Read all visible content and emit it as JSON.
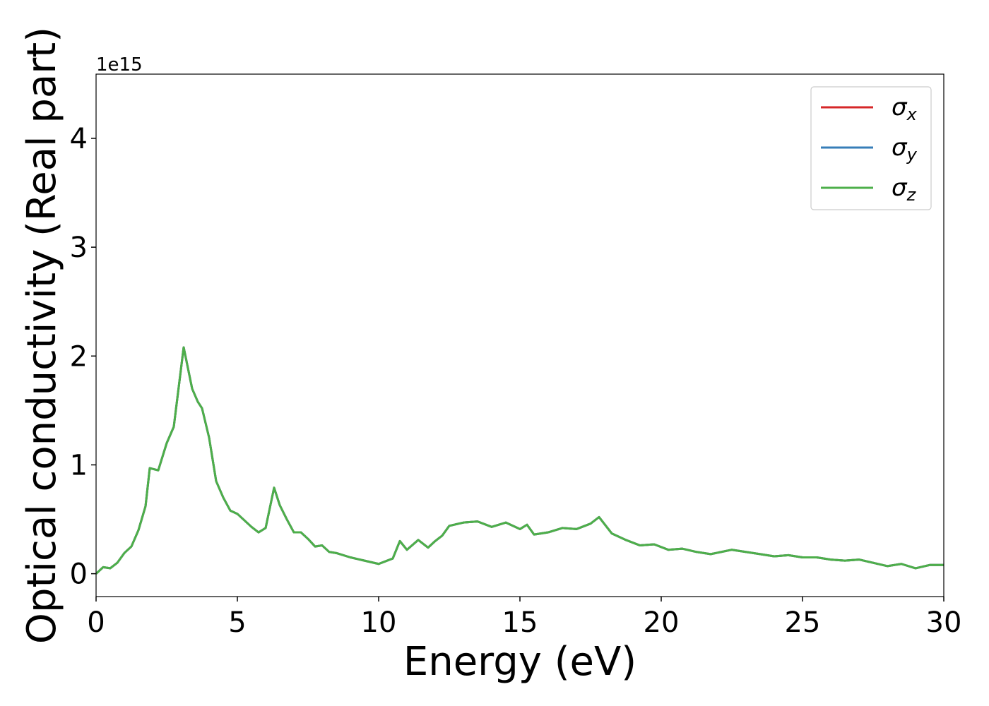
{
  "chart_data": {
    "type": "line",
    "xlabel": "Energy (eV)",
    "ylabel": "Optical conductivity (Real part)",
    "y_offset_label": "1e15",
    "x": [
      0,
      0.25,
      0.5,
      0.75,
      1.0,
      1.25,
      1.5,
      1.75,
      1.9,
      2.2,
      2.5,
      2.75,
      3.1,
      3.4,
      3.6,
      3.75,
      4.0,
      4.25,
      4.5,
      4.75,
      5.0,
      5.5,
      5.75,
      6.0,
      6.3,
      6.5,
      6.75,
      7.0,
      7.25,
      7.5,
      7.75,
      8.0,
      8.25,
      8.5,
      9.0,
      9.5,
      10.0,
      10.5,
      10.75,
      11.0,
      11.4,
      11.75,
      12.0,
      12.25,
      12.5,
      13.0,
      13.5,
      14.0,
      14.5,
      15.0,
      15.25,
      15.5,
      16.0,
      16.5,
      17.0,
      17.5,
      17.8,
      18.25,
      18.75,
      19.25,
      19.75,
      20.25,
      20.75,
      21.25,
      21.75,
      22.5,
      23.5,
      24.0,
      24.5,
      25.0,
      25.5,
      26.0,
      26.5,
      27.0,
      27.5,
      28.0,
      28.5,
      29.0,
      29.5,
      30.0
    ],
    "series": [
      {
        "name": "σx",
        "color": "#d62728",
        "values": [
          0,
          0.06,
          0.05,
          0.1,
          0.19,
          0.25,
          0.4,
          0.62,
          0.97,
          0.95,
          1.2,
          1.35,
          2.08,
          1.7,
          1.58,
          1.52,
          1.25,
          0.85,
          0.7,
          0.58,
          0.55,
          0.43,
          0.38,
          0.42,
          0.79,
          0.63,
          0.5,
          0.38,
          0.38,
          0.32,
          0.25,
          0.26,
          0.2,
          0.19,
          0.15,
          0.12,
          0.09,
          0.14,
          0.3,
          0.22,
          0.31,
          0.24,
          0.3,
          0.35,
          0.44,
          0.47,
          0.48,
          0.43,
          0.47,
          0.41,
          0.45,
          0.36,
          0.38,
          0.42,
          0.41,
          0.46,
          0.52,
          0.37,
          0.31,
          0.26,
          0.27,
          0.22,
          0.23,
          0.2,
          0.18,
          0.22,
          0.18,
          0.16,
          0.17,
          0.15,
          0.15,
          0.13,
          0.12,
          0.13,
          0.1,
          0.07,
          0.09,
          0.05,
          0.08,
          0.08
        ]
      },
      {
        "name": "σy",
        "color": "#377eb8",
        "values": [
          0,
          0.06,
          0.05,
          0.1,
          0.19,
          0.25,
          0.4,
          0.62,
          0.97,
          0.95,
          1.2,
          1.35,
          2.08,
          1.7,
          1.58,
          1.52,
          1.25,
          0.85,
          0.7,
          0.58,
          0.55,
          0.43,
          0.38,
          0.42,
          0.79,
          0.63,
          0.5,
          0.38,
          0.38,
          0.32,
          0.25,
          0.26,
          0.2,
          0.19,
          0.15,
          0.12,
          0.09,
          0.14,
          0.3,
          0.22,
          0.31,
          0.24,
          0.3,
          0.35,
          0.44,
          0.47,
          0.48,
          0.43,
          0.47,
          0.41,
          0.45,
          0.36,
          0.38,
          0.42,
          0.41,
          0.46,
          0.52,
          0.37,
          0.31,
          0.26,
          0.27,
          0.22,
          0.23,
          0.2,
          0.18,
          0.22,
          0.18,
          0.16,
          0.17,
          0.15,
          0.15,
          0.13,
          0.12,
          0.13,
          0.1,
          0.07,
          0.09,
          0.05,
          0.08,
          0.08
        ]
      },
      {
        "name": "σz",
        "color": "#4daf4a",
        "values": [
          0,
          0.06,
          0.05,
          0.1,
          0.19,
          0.25,
          0.4,
          0.62,
          0.97,
          0.95,
          1.2,
          1.35,
          2.08,
          1.7,
          1.58,
          1.52,
          1.25,
          0.85,
          0.7,
          0.58,
          0.55,
          0.43,
          0.38,
          0.42,
          0.79,
          0.63,
          0.5,
          0.38,
          0.38,
          0.32,
          0.25,
          0.26,
          0.2,
          0.19,
          0.15,
          0.12,
          0.09,
          0.14,
          0.3,
          0.22,
          0.31,
          0.24,
          0.3,
          0.35,
          0.44,
          0.47,
          0.48,
          0.43,
          0.47,
          0.41,
          0.45,
          0.36,
          0.38,
          0.42,
          0.41,
          0.46,
          0.52,
          0.37,
          0.31,
          0.26,
          0.27,
          0.22,
          0.23,
          0.2,
          0.18,
          0.22,
          0.18,
          0.16,
          0.17,
          0.15,
          0.15,
          0.13,
          0.12,
          0.13,
          0.1,
          0.07,
          0.09,
          0.05,
          0.08,
          0.08
        ]
      }
    ],
    "xlim": [
      0,
      30
    ],
    "xticks": [
      0,
      5,
      10,
      15,
      20,
      25,
      30
    ],
    "ylim": [
      -0.21,
      4.59
    ],
    "yticks": [
      0,
      1,
      2,
      3,
      4
    ],
    "grid": false,
    "legend": "upper right"
  }
}
